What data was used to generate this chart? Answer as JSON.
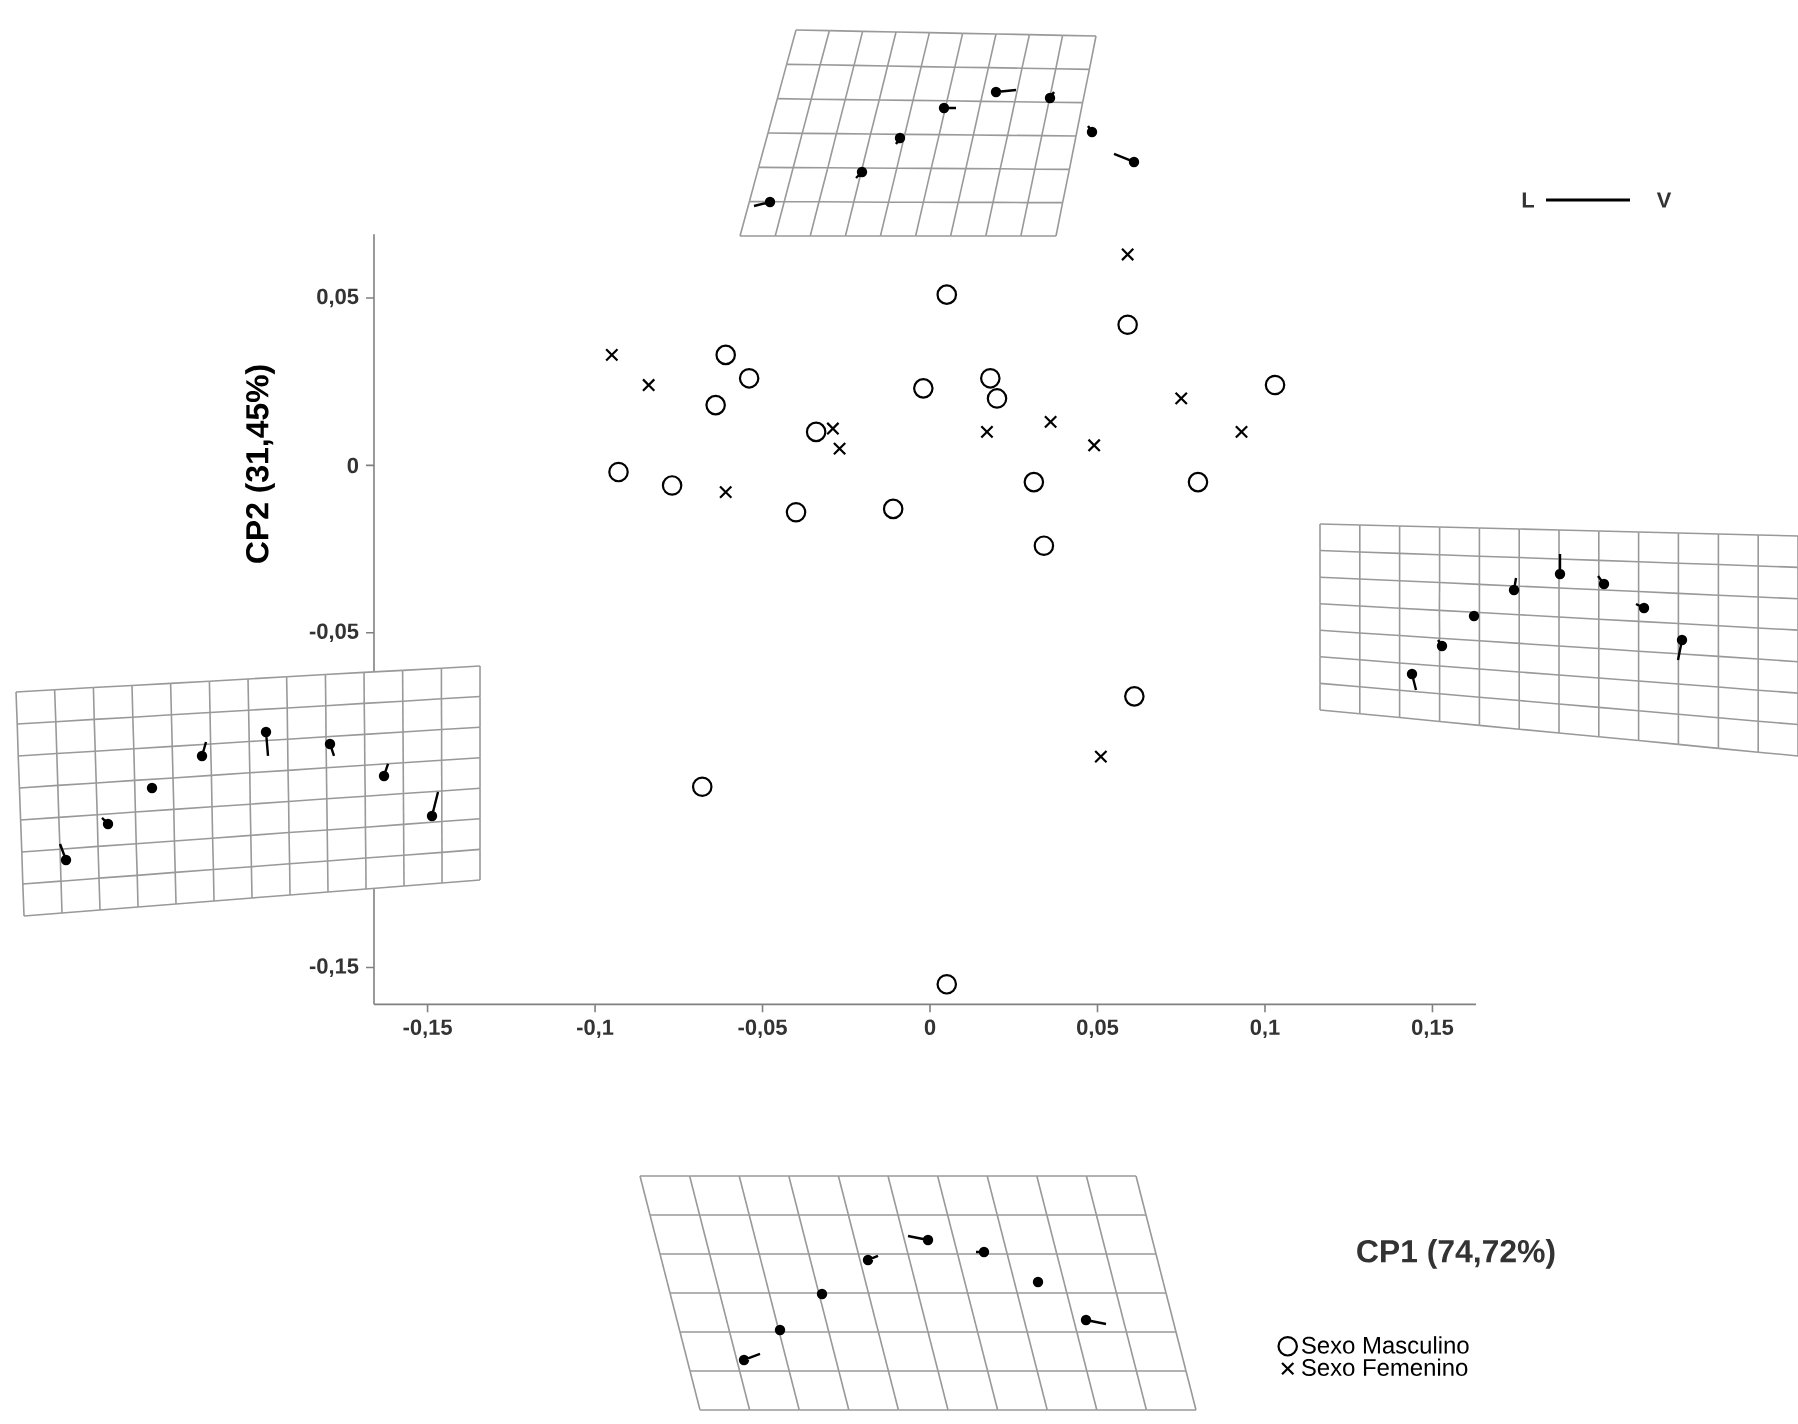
{
  "chart_data": {
    "type": "scatter",
    "ylabel": "CP2 (31,45%)",
    "xlim": [
      -0.166,
      0.163
    ],
    "ylim": [
      -0.161,
      0.069
    ],
    "xticks": [
      {
        "value": -0.15,
        "label": "-0,15"
      },
      {
        "value": -0.1,
        "label": "-0,1"
      },
      {
        "value": -0.05,
        "label": "-0,05"
      },
      0,
      {
        "value": 0.05,
        "label": "0,05"
      },
      {
        "value": 0.1,
        "label": "0,1"
      },
      {
        "value": 0.15,
        "label": "0,15"
      }
    ],
    "yticks": [
      {
        "value": 0.05,
        "label": "0,05"
      },
      0,
      {
        "value": -0.05,
        "label": "-0,05"
      },
      {
        "value": -0.15,
        "label": "-0,15"
      }
    ],
    "legend": "bottom right",
    "grid": false,
    "annotations": [
      "L",
      "V",
      "CP1 (74,72%)"
    ],
    "series": [
      {
        "name": "Sexo Masculino",
        "color": "#000000",
        "marker": "circle",
        "x": [
          -0.093,
          -0.077,
          -0.061,
          -0.054,
          -0.064,
          -0.034,
          -0.04,
          -0.011,
          -0.068,
          -0.002,
          0.005,
          0.059,
          0.018,
          0.02,
          0.103,
          0.031,
          0.08,
          0.034,
          0.061,
          0.005
        ],
        "values": [
          -0.002,
          -0.006,
          0.033,
          0.026,
          0.018,
          0.01,
          -0.014,
          -0.013,
          -0.096,
          0.023,
          0.051,
          0.042,
          0.026,
          0.02,
          0.024,
          -0.005,
          -0.005,
          -0.024,
          -0.069,
          -0.155
        ]
      },
      {
        "name": "Sexo Femenino",
        "color": "#000000",
        "marker": "cross",
        "x": [
          -0.095,
          -0.084,
          -0.061,
          -0.029,
          -0.027,
          0.059,
          0.075,
          0.036,
          0.017,
          0.049,
          0.093,
          0.051
        ],
        "values": [
          0.033,
          0.024,
          -0.008,
          0.011,
          0.005,
          0.063,
          0.02,
          0.013,
          0.01,
          0.006,
          0.01,
          -0.087
        ]
      }
    ]
  }
}
